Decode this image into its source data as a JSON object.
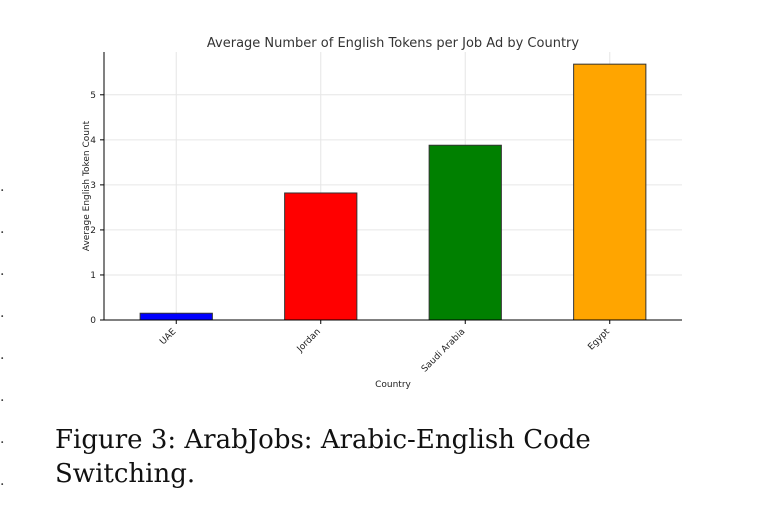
{
  "chart_data": {
    "type": "bar",
    "title": "Average Number of English Tokens per Job Ad by Country",
    "xlabel": "Country",
    "ylabel": "Average English Token Count",
    "categories": [
      "UAE",
      "Jordan",
      "Saudi Arabia",
      "Egypt"
    ],
    "values": [
      0.15,
      2.82,
      3.88,
      5.68
    ],
    "colors": [
      "#0000ff",
      "#ff0000",
      "#008000",
      "#ffa500"
    ],
    "ylim": [
      0,
      5.95
    ],
    "yticks": [
      0,
      1,
      2,
      3,
      4,
      5
    ],
    "grid": true
  },
  "caption": {
    "text": "Figure 3: ArabJobs: Arabic-English Code Switching."
  }
}
